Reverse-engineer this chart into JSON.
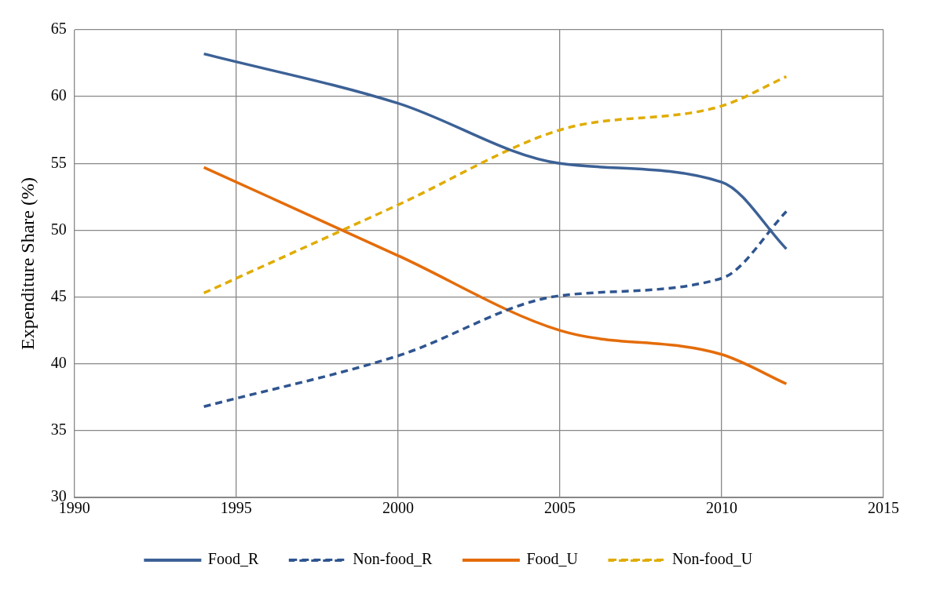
{
  "chart_data": {
    "type": "line",
    "ylabel": "Expenditure Share (%)",
    "x": [
      1994,
      2000,
      2005,
      2010,
      2012
    ],
    "xlim": [
      1990,
      2015
    ],
    "xticks": [
      1990,
      1995,
      2000,
      2005,
      2010,
      2015
    ],
    "ylim": [
      30,
      65
    ],
    "yticks": [
      30,
      35,
      40,
      45,
      50,
      55,
      60,
      65
    ],
    "grid": true,
    "legend": "bottom",
    "marker": "none",
    "series": [
      {
        "name": "Food_R",
        "color": "#3c6196",
        "line_style": "solid",
        "values": [
          63.2,
          59.5,
          55.0,
          53.6,
          48.6
        ]
      },
      {
        "name": "Non-food_R",
        "color": "#2f5590",
        "line_style": "dashed",
        "values": [
          36.8,
          40.6,
          45.1,
          46.4,
          51.4
        ]
      },
      {
        "name": "Food_U",
        "color": "#e46c0a",
        "line_style": "solid",
        "values": [
          54.7,
          48.1,
          42.5,
          40.7,
          38.5
        ]
      },
      {
        "name": "Non-food_U",
        "color": "#e0ac00",
        "line_style": "dashed",
        "values": [
          45.3,
          51.9,
          57.5,
          59.3,
          61.5
        ]
      }
    ]
  }
}
